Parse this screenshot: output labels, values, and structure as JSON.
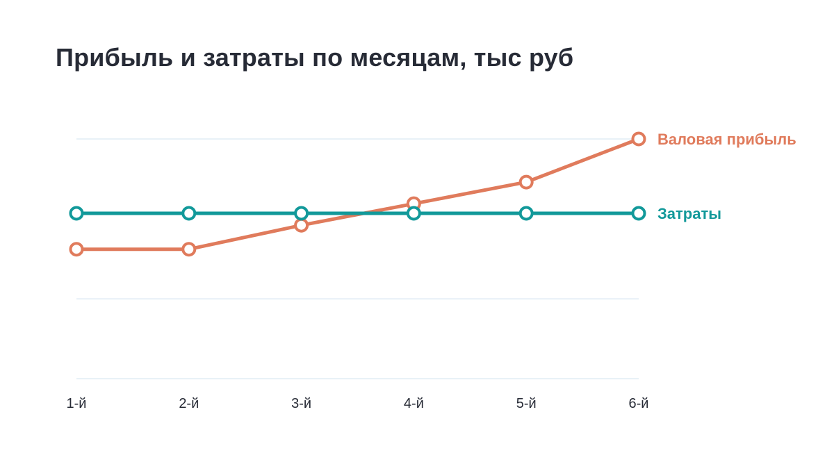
{
  "chart_data": {
    "type": "line",
    "title": "Прибыль и затраты по месяцам, тыс руб",
    "categories": [
      "1-й",
      "2-й",
      "3-й",
      "4-й",
      "5-й",
      "6-й"
    ],
    "ylim": [
      0,
      100
    ],
    "grid_values": [
      0,
      33.3,
      100
    ],
    "grid": true,
    "legend": "right-end labels",
    "series": [
      {
        "name": "Валовая прибыль",
        "color": "#e07b5c",
        "values": [
          54,
          54,
          64,
          73,
          82,
          100
        ]
      },
      {
        "name": "Затраты",
        "color": "#12999a",
        "values": [
          69,
          69,
          69,
          69,
          69,
          69
        ]
      }
    ]
  }
}
